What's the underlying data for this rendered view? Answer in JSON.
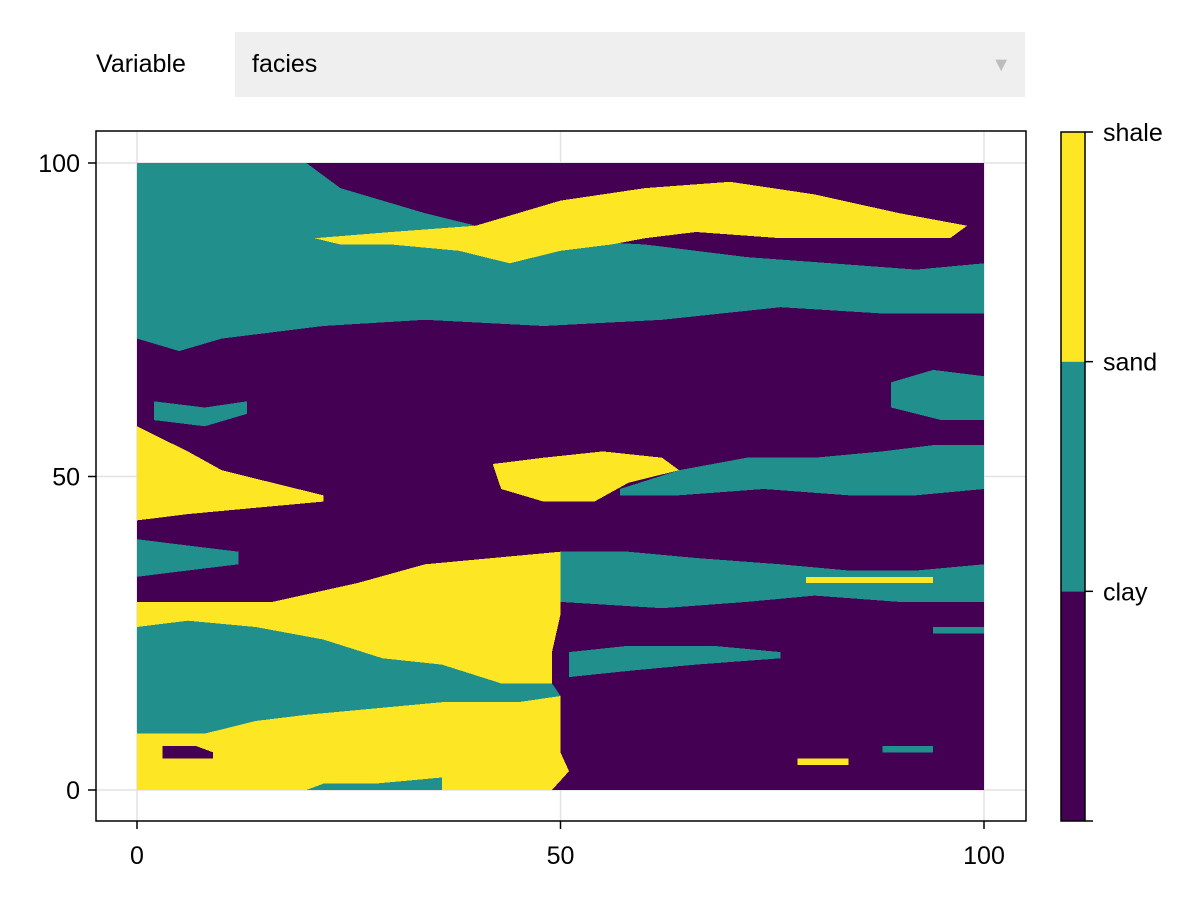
{
  "controls": {
    "variable_label": "Variable",
    "variable_value": "facies",
    "dropdown_icon": "triangle-down-icon"
  },
  "chart_data": {
    "type": "heatmap",
    "title": "",
    "xlabel": "",
    "ylabel": "",
    "xlim": [
      -5,
      105
    ],
    "ylim": [
      -5,
      105
    ],
    "grid": true,
    "xticks": [
      "0",
      "50",
      "100"
    ],
    "yticks": [
      "0",
      "50",
      "100"
    ],
    "grid_size": [
      100,
      100
    ],
    "categories": [
      "clay",
      "sand",
      "shale"
    ],
    "colors": {
      "clay": "#440154",
      "sand": "#21908d",
      "shale": "#fde725"
    },
    "colorbar_labels": [
      "clay",
      "sand",
      "shale"
    ],
    "regions": [
      {
        "facies": "clay",
        "polygon": [
          [
            0,
            0
          ],
          [
            100,
            0
          ],
          [
            100,
            100
          ],
          [
            0,
            100
          ]
        ]
      },
      {
        "facies": "sand",
        "polygon": [
          [
            0,
            100
          ],
          [
            20,
            100
          ],
          [
            24,
            96
          ],
          [
            34,
            92
          ],
          [
            46,
            88
          ],
          [
            60,
            87
          ],
          [
            72,
            85
          ],
          [
            82,
            84
          ],
          [
            92,
            83
          ],
          [
            100,
            84
          ],
          [
            100,
            76
          ],
          [
            88,
            76
          ],
          [
            76,
            77
          ],
          [
            62,
            75
          ],
          [
            48,
            74
          ],
          [
            34,
            75
          ],
          [
            22,
            74
          ],
          [
            10,
            72
          ],
          [
            5,
            70
          ],
          [
            0,
            72
          ]
        ]
      },
      {
        "facies": "shale",
        "polygon": [
          [
            21,
            88
          ],
          [
            30,
            89
          ],
          [
            40,
            90
          ],
          [
            50,
            94
          ],
          [
            60,
            96
          ],
          [
            70,
            97
          ],
          [
            80,
            95
          ],
          [
            90,
            92
          ],
          [
            98,
            90
          ],
          [
            96,
            88
          ],
          [
            86,
            88
          ],
          [
            76,
            88
          ],
          [
            66,
            89
          ],
          [
            60,
            88
          ],
          [
            56,
            87
          ],
          [
            50,
            86
          ],
          [
            44,
            84
          ],
          [
            38,
            86
          ],
          [
            30,
            87
          ],
          [
            24,
            87
          ]
        ]
      },
      {
        "facies": "sand",
        "polygon": [
          [
            89,
            65
          ],
          [
            94,
            67
          ],
          [
            100,
            66
          ],
          [
            100,
            59
          ],
          [
            95,
            59
          ],
          [
            89,
            61
          ]
        ]
      },
      {
        "facies": "sand",
        "polygon": [
          [
            2,
            62
          ],
          [
            8,
            61
          ],
          [
            13,
            62
          ],
          [
            13,
            60
          ],
          [
            8,
            58
          ],
          [
            2,
            59
          ]
        ]
      },
      {
        "facies": "shale",
        "polygon": [
          [
            0,
            58
          ],
          [
            3,
            56
          ],
          [
            6,
            54
          ],
          [
            10,
            51
          ],
          [
            16,
            49
          ],
          [
            22,
            47
          ],
          [
            22,
            46
          ],
          [
            14,
            45
          ],
          [
            6,
            44
          ],
          [
            0,
            43
          ]
        ]
      },
      {
        "facies": "shale",
        "polygon": [
          [
            42,
            52
          ],
          [
            48,
            53
          ],
          [
            55,
            54
          ],
          [
            62,
            53
          ],
          [
            64,
            51
          ],
          [
            58,
            49
          ],
          [
            54,
            46
          ],
          [
            48,
            46
          ],
          [
            43,
            48
          ]
        ]
      },
      {
        "facies": "sand",
        "polygon": [
          [
            57,
            48
          ],
          [
            64,
            51
          ],
          [
            72,
            53
          ],
          [
            80,
            53
          ],
          [
            88,
            54
          ],
          [
            94,
            55
          ],
          [
            100,
            55
          ],
          [
            100,
            48
          ],
          [
            92,
            47
          ],
          [
            84,
            47
          ],
          [
            74,
            48
          ],
          [
            64,
            47
          ],
          [
            57,
            47
          ]
        ]
      },
      {
        "facies": "sand",
        "polygon": [
          [
            0,
            40
          ],
          [
            6,
            39
          ],
          [
            12,
            38
          ],
          [
            12,
            36
          ],
          [
            6,
            35
          ],
          [
            0,
            34
          ]
        ]
      },
      {
        "facies": "shale",
        "polygon": [
          [
            0,
            30
          ],
          [
            16,
            30
          ],
          [
            26,
            33
          ],
          [
            34,
            36
          ],
          [
            42,
            37
          ],
          [
            50,
            38
          ],
          [
            50,
            28
          ],
          [
            49,
            22
          ],
          [
            49,
            17
          ],
          [
            43,
            17
          ],
          [
            36,
            20
          ],
          [
            29,
            21
          ],
          [
            22,
            24
          ],
          [
            14,
            26
          ],
          [
            6,
            27
          ],
          [
            0,
            26
          ]
        ]
      },
      {
        "facies": "sand",
        "polygon": [
          [
            50,
            38
          ],
          [
            58,
            38
          ],
          [
            66,
            37
          ],
          [
            76,
            36
          ],
          [
            84,
            35
          ],
          [
            92,
            35
          ],
          [
            100,
            36
          ],
          [
            100,
            30
          ],
          [
            90,
            30
          ],
          [
            80,
            31
          ],
          [
            72,
            30
          ],
          [
            62,
            29
          ],
          [
            50,
            30
          ]
        ]
      },
      {
        "facies": "sand",
        "polygon": [
          [
            0,
            26
          ],
          [
            6,
            27
          ],
          [
            14,
            26
          ],
          [
            22,
            24
          ],
          [
            29,
            21
          ],
          [
            36,
            20
          ],
          [
            43,
            17
          ],
          [
            49,
            17
          ],
          [
            50,
            15
          ],
          [
            45,
            14
          ],
          [
            36,
            14
          ],
          [
            28,
            13
          ],
          [
            20,
            12
          ],
          [
            14,
            11
          ],
          [
            8,
            9
          ],
          [
            0,
            9
          ]
        ]
      },
      {
        "facies": "sand",
        "polygon": [
          [
            51,
            22
          ],
          [
            58,
            23
          ],
          [
            68,
            23
          ],
          [
            76,
            22
          ],
          [
            76,
            21
          ],
          [
            66,
            20
          ],
          [
            58,
            19
          ],
          [
            51,
            18
          ]
        ]
      },
      {
        "facies": "shale",
        "polygon": [
          [
            0,
            9
          ],
          [
            8,
            9
          ],
          [
            14,
            11
          ],
          [
            20,
            12
          ],
          [
            28,
            13
          ],
          [
            36,
            14
          ],
          [
            45,
            14
          ],
          [
            50,
            15
          ],
          [
            50,
            6
          ],
          [
            51,
            3
          ],
          [
            49,
            0
          ],
          [
            0,
            0
          ]
        ]
      },
      {
        "facies": "clay",
        "polygon": [
          [
            3,
            7
          ],
          [
            7,
            7
          ],
          [
            9,
            6
          ],
          [
            9,
            5
          ],
          [
            5,
            5
          ],
          [
            3,
            5
          ]
        ]
      },
      {
        "facies": "sand",
        "polygon": [
          [
            22,
            1
          ],
          [
            28,
            1
          ],
          [
            36,
            2
          ],
          [
            36,
            0
          ],
          [
            20,
            0
          ]
        ]
      },
      {
        "facies": "shale",
        "polygon": [
          [
            79,
            34
          ],
          [
            94,
            34
          ],
          [
            94,
            33
          ],
          [
            79,
            33
          ]
        ]
      },
      {
        "facies": "shale",
        "polygon": [
          [
            78,
            5
          ],
          [
            84,
            5
          ],
          [
            84,
            4
          ],
          [
            78,
            4
          ]
        ]
      },
      {
        "facies": "sand",
        "polygon": [
          [
            88,
            7
          ],
          [
            94,
            7
          ],
          [
            94,
            6
          ],
          [
            88,
            6
          ]
        ]
      },
      {
        "facies": "sand",
        "polygon": [
          [
            94,
            26
          ],
          [
            100,
            26
          ],
          [
            100,
            25
          ],
          [
            94,
            25
          ]
        ]
      }
    ]
  }
}
